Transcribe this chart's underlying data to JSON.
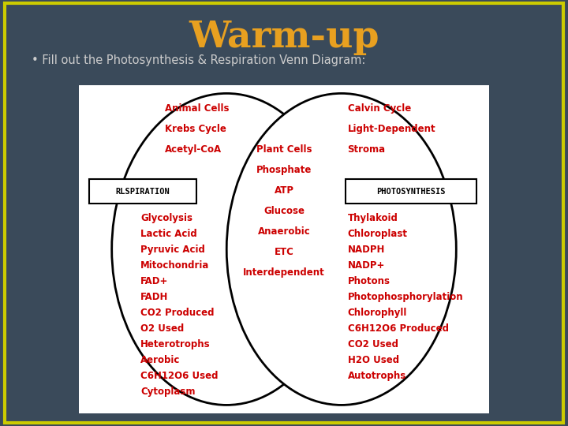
{
  "title": "Warm-up",
  "subtitle": "Fill out the Photosynthesis & Respiration Venn Diagram:",
  "bg_color": "#3a4a5a",
  "title_color": "#e8a020",
  "subtitle_color": "#cccccc",
  "venn_bg": "#ffffff",
  "text_color": "#cc0000",
  "border_color": "#cccc00",
  "left_label": "RLSPIRATION",
  "right_label": "PHOTOSYNTHESIS",
  "left_top": [
    "Animal Cells",
    "Krebs Cycle",
    "Acetyl-CoA"
  ],
  "left_bot": [
    "Glycolysis",
    "Lactic Acid",
    "Pyruvic Acid",
    "Mitochondria",
    "FAD+",
    "FADH",
    "CO2 Produced",
    "O2 Used",
    "Heterotrophs",
    "Aerobic",
    "C6H12O6 Used",
    "Cytoplasm"
  ],
  "center": [
    "Plant Cells",
    "Phosphate",
    "ATP",
    "Glucose",
    "Anaerobic",
    "ETC",
    "Interdependent"
  ],
  "right_top": [
    "Calvin Cycle",
    "Light-Dependent",
    "Stroma"
  ],
  "right_bot": [
    "Thylakoid",
    "Chloroplast",
    "NADPH",
    "NADP+",
    "Photons",
    "Photophosphorylation",
    "Chlorophyll",
    "C6H12O6 Produced",
    "CO2 Used",
    "H2O Used",
    "Autotrophs"
  ]
}
